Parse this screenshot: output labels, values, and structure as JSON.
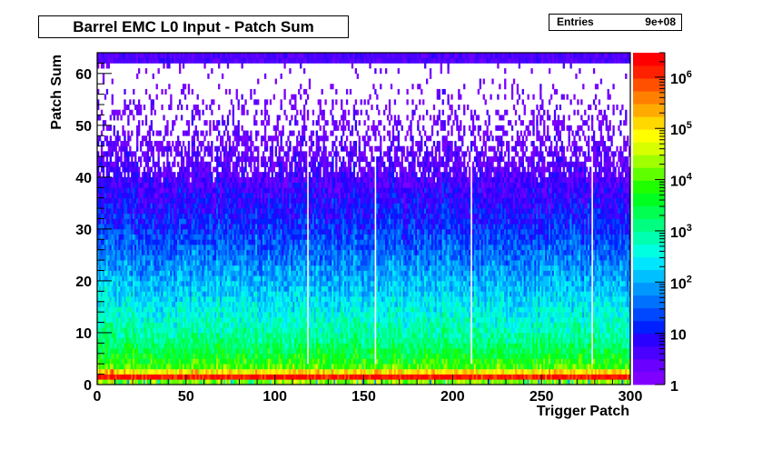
{
  "chart_data": {
    "type": "heatmap",
    "title": "Barrel EMC L0 Input - Patch Sum",
    "xlabel": "Trigger Patch",
    "ylabel": "Patch Sum",
    "xlim": [
      0,
      300
    ],
    "ylim": [
      0,
      64
    ],
    "x_ticks": [
      0,
      50,
      100,
      150,
      200,
      250,
      300
    ],
    "y_ticks": [
      0,
      10,
      20,
      30,
      40,
      50,
      60
    ],
    "z_scale": "log",
    "z_range": [
      1,
      3000000
    ],
    "z_ticks": [
      {
        "value": 1,
        "base": "1",
        "exp": ""
      },
      {
        "value": 10,
        "base": "10",
        "exp": ""
      },
      {
        "value": 100,
        "base": "10",
        "exp": "2"
      },
      {
        "value": 1000,
        "base": "10",
        "exp": "3"
      },
      {
        "value": 10000,
        "base": "10",
        "exp": "4"
      },
      {
        "value": 100000,
        "base": "10",
        "exp": "5"
      },
      {
        "value": 1000000,
        "base": "10",
        "exp": "6"
      }
    ],
    "profile_y_vs_log10_count": [
      [
        0,
        4.3
      ],
      [
        1,
        6.3
      ],
      [
        2,
        5.0
      ],
      [
        3,
        4.0
      ],
      [
        5,
        3.6
      ],
      [
        8,
        3.1
      ],
      [
        12,
        2.7
      ],
      [
        18,
        2.2
      ],
      [
        25,
        1.6
      ],
      [
        30,
        1.2
      ],
      [
        35,
        0.85
      ],
      [
        40,
        0.55
      ],
      [
        45,
        0.35
      ],
      [
        50,
        0.2
      ],
      [
        55,
        0.1
      ],
      [
        60,
        0.03
      ],
      [
        63,
        0.5
      ]
    ],
    "grid": false,
    "colorbar": "right"
  },
  "stats": {
    "entries_label": "Entries",
    "entries_value": "9e+08"
  }
}
